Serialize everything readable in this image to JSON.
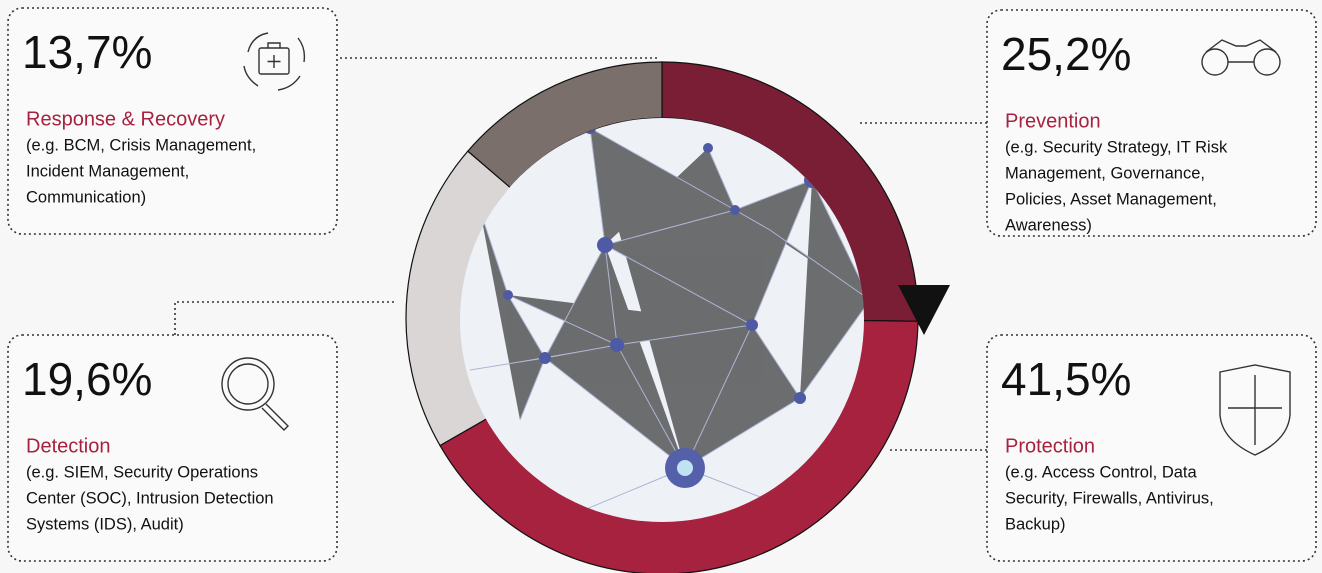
{
  "chart_data": {
    "type": "donut",
    "categories": [
      "Prevention",
      "Protection",
      "Detection",
      "Response & Recovery"
    ],
    "values": [
      25.2,
      41.5,
      19.6,
      13.7
    ],
    "value_labels": [
      "25,2%",
      "41,5%",
      "19,6%",
      "13,7%"
    ],
    "colors": [
      "#7a1e35",
      "#a6223f",
      "#dad6d5",
      "#7b6f6b"
    ],
    "descriptions": [
      [
        "(e.g. Security Strategy, IT Risk",
        "Management, Governance,",
        "Policies, Asset Management,",
        "Awareness)"
      ],
      [
        "(e.g. Access Control, Data",
        "Security, Firewalls, Antivirus,",
        "Backup)"
      ],
      [
        "(e.g. SIEM, Security Operations",
        "Center (SOC), Intrusion Detection",
        "Systems (IDS), Audit)"
      ],
      [
        "(e.g. BCM, Crisis Management,",
        "Incident Management,",
        "Communication)"
      ]
    ]
  }
}
